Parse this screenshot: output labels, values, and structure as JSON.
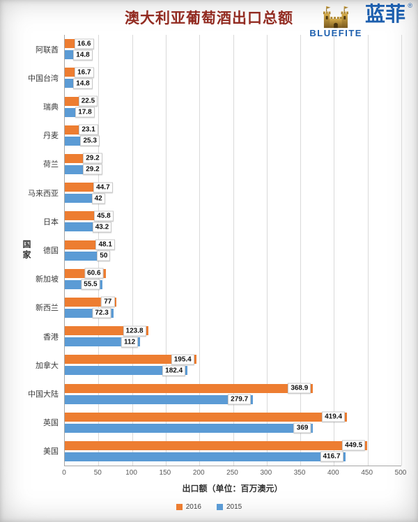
{
  "title": "澳大利亚葡萄酒出口总额",
  "logo": {
    "cn": "蓝菲",
    "reg": "®",
    "en": "BLUEFITE",
    "icon": "castle-icon",
    "text_color": "#1D5FAE",
    "icon_color": "#A9822F"
  },
  "colors": {
    "title": "#922B21",
    "bar_2016": "#ED7D31",
    "bar_2015": "#5B9BD5",
    "gridline": "#d9d9d9",
    "axis": "#a6a6a6"
  },
  "chart_data": {
    "type": "bar",
    "orientation": "horizontal",
    "title": "澳大利亚葡萄酒出口总额",
    "ylabel": "国家",
    "xlabel": "出口额（单位：百万澳元）",
    "xlim": [
      0,
      500
    ],
    "xticks": [
      0,
      50,
      100,
      150,
      200,
      250,
      300,
      350,
      400,
      450,
      500
    ],
    "grid": true,
    "legend_position": "bottom",
    "categories_top_to_bottom": [
      "阿联酋",
      "中国台湾",
      "瑞典",
      "丹麦",
      "荷兰",
      "马来西亚",
      "日本",
      "德国",
      "新加坡",
      "新西兰",
      "香港",
      "加拿大",
      "中国大陆",
      "英国",
      "美国"
    ],
    "series": [
      {
        "name": "2016",
        "color": "#ED7D31",
        "values": [
          16.6,
          16.7,
          22.5,
          23.1,
          29.2,
          44.7,
          45.8,
          48.1,
          60.6,
          77,
          123.8,
          195.4,
          368.9,
          419.4,
          449.5
        ]
      },
      {
        "name": "2015",
        "color": "#5B9BD5",
        "values": [
          14.8,
          14.8,
          17.8,
          25.3,
          29.2,
          42,
          43.2,
          50,
          55.5,
          72.3,
          112,
          182.4,
          279.7,
          369,
          416.7
        ]
      }
    ]
  }
}
